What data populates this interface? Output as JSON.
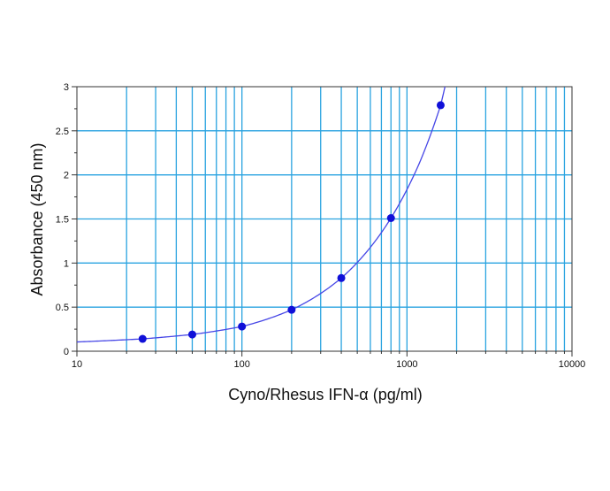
{
  "chart_data": {
    "type": "scatter",
    "title": "",
    "xlabel": "Cyno/Rhesus IFN-α (pg/ml)",
    "ylabel": "Absorbance (450 nm)",
    "xscale": "log",
    "xlim": [
      10,
      10000
    ],
    "ylim": [
      0,
      3
    ],
    "grid": true,
    "legend": "none",
    "x_ticks": [
      "10",
      "100",
      "1000",
      "10000"
    ],
    "y_ticks": [
      "0",
      "0.5",
      "1",
      "1.5",
      "2",
      "2.5",
      "3"
    ],
    "series": [
      {
        "x": [
          25,
          50,
          100,
          200,
          400,
          800,
          1600
        ],
        "y": [
          0.14,
          0.19,
          0.28,
          0.47,
          0.83,
          1.51,
          2.79
        ]
      }
    ],
    "curve": {
      "x": [
        10,
        25,
        50,
        100,
        200,
        400,
        800,
        1200,
        1600,
        1700
      ],
      "y": [
        0.105,
        0.14,
        0.19,
        0.28,
        0.47,
        0.83,
        1.51,
        2.15,
        2.79,
        3.0
      ]
    },
    "colors": {
      "grid": "#29a3e0",
      "curve": "#4646e6",
      "points": "#1010d8",
      "frame": "#333333"
    }
  }
}
